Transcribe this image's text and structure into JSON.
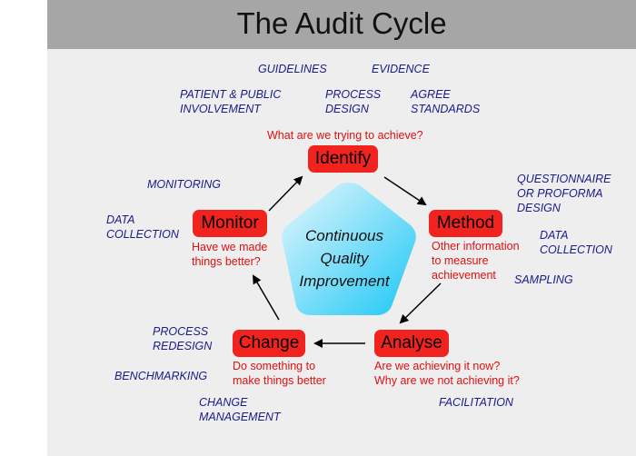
{
  "title": "The Audit Cycle",
  "center": {
    "line1": "Continuous",
    "line2": "Quality",
    "line3": "Improvement"
  },
  "stages": {
    "identify": {
      "label": "Identify",
      "question": "What are we trying to achieve?"
    },
    "method": {
      "label": "Method",
      "question_lines": [
        "Other information",
        "to measure",
        "achievement"
      ]
    },
    "analyse": {
      "label": "Analyse",
      "question_lines": [
        "Are we achieving it now?",
        "Why are we not achieving it?"
      ]
    },
    "change": {
      "label": "Change",
      "question_lines": [
        "Do something to",
        "make things better"
      ]
    },
    "monitor": {
      "label": "Monitor",
      "question_lines": [
        "Have we made",
        "things better?"
      ]
    }
  },
  "activities": {
    "guidelines": "GUIDELINES",
    "evidence": "EVIDENCE",
    "patient_public": [
      "PATIENT & PUBLIC",
      "INVOLVEMENT"
    ],
    "process_design": [
      "PROCESS",
      "DESIGN"
    ],
    "agree_standards": [
      "AGREE",
      "STANDARDS"
    ],
    "questionnaire": [
      "QUESTIONNAIRE",
      "OR PROFORMA",
      "DESIGN"
    ],
    "data_collection_right": [
      "DATA",
      "COLLECTION"
    ],
    "sampling": "SAMPLING",
    "facilitation": "FACILITATION",
    "change_management": [
      "CHANGE",
      "MANAGEMENT"
    ],
    "benchmarking": "BENCHMARKING",
    "process_redesign": [
      "PROCESS",
      "REDESIGN"
    ],
    "data_collection_left": [
      "DATA",
      "COLLECTION"
    ],
    "monitoring": "MONITORING"
  },
  "colors": {
    "node_fill": "#f0231e",
    "question_text": "#e01010",
    "activity_text": "#1a1a8c",
    "pentagon_light": "#e8f8fd",
    "pentagon_dark": "#1cc7f5",
    "title_bar": "#a6a6a6",
    "background": "#eeeeee"
  }
}
